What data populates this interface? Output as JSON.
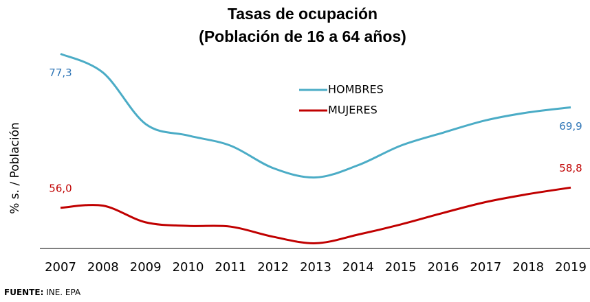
{
  "chart_data": {
    "type": "line",
    "title": [
      "Tasas de ocupación",
      "(Población de 16 a 64 años)"
    ],
    "ylabel": "% s. / Población",
    "categories": [
      "2007",
      "2008",
      "2009",
      "2010",
      "2011",
      "2012",
      "2013",
      "2014",
      "2015",
      "2016",
      "2017",
      "2018",
      "2019"
    ],
    "series": [
      {
        "name": "HOMBRES",
        "color": "#4bacc6",
        "label_color": "#2e75b6",
        "values": [
          77.3,
          74.7,
          67.6,
          66.0,
          64.6,
          61.5,
          60.2,
          61.9,
          64.6,
          66.4,
          68.1,
          69.2,
          69.9
        ],
        "value_labels": [
          "77,3",
          null,
          null,
          null,
          null,
          null,
          null,
          null,
          null,
          null,
          null,
          null,
          "69,9"
        ]
      },
      {
        "name": "MUJERES",
        "color": "#c00000",
        "label_color": "#c00000",
        "values": [
          56.0,
          56.3,
          54.0,
          53.5,
          53.4,
          52.0,
          51.1,
          52.3,
          53.7,
          55.3,
          56.8,
          57.9,
          58.8
        ],
        "value_labels": [
          "56,0",
          null,
          null,
          null,
          null,
          null,
          null,
          null,
          null,
          null,
          null,
          null,
          "58,8"
        ]
      }
    ],
    "ylim": [
      50,
      80
    ],
    "source": {
      "label": "FUENTE:",
      "text": "INE. EPA"
    }
  }
}
